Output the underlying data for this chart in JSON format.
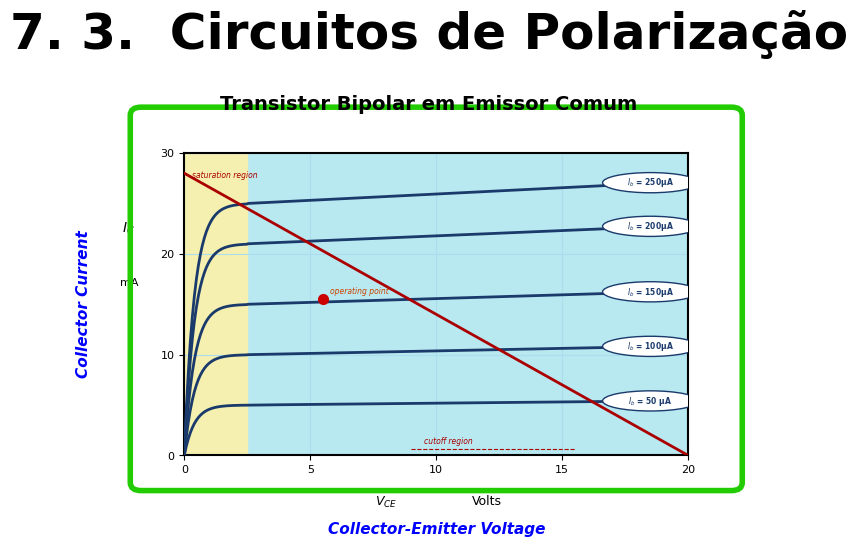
{
  "title": "7. 3.  Circuitos de Polarização",
  "subtitle": "Transistor Bipolar em Emissor Comum",
  "title_fontsize": 36,
  "subtitle_fontsize": 14,
  "background_color": "#ffffff",
  "chart": {
    "bg_color": "#b8e8f0",
    "sat_region_color": "#f5f0b0",
    "border_color": "#22cc00",
    "xlim": [
      0,
      20
    ],
    "ylim": [
      0,
      30
    ],
    "xticks": [
      0,
      5,
      10,
      15,
      20
    ],
    "yticks": [
      0,
      10,
      20,
      30
    ],
    "curves": [
      {
        "ib": 250,
        "ic_sat": 25,
        "label": "I_b = 250μA"
      },
      {
        "ib": 200,
        "ic_sat": 21,
        "label": "I_b = 200μA"
      },
      {
        "ib": 150,
        "ic_sat": 15,
        "label": "I_b = 150μA"
      },
      {
        "ib": 100,
        "ic_sat": 10,
        "label": "I_b = 100μA"
      },
      {
        "ib": 50,
        "ic_sat": 5,
        "label": "I_b = 50 μA"
      }
    ],
    "load_line": [
      [
        0,
        28
      ],
      [
        20,
        0
      ]
    ],
    "op_point": [
      5.5,
      15.5
    ],
    "curve_color": "#1a3a6b",
    "load_line_color": "#aa0000",
    "op_point_color": "#cc0000",
    "sat_text_color": "#aa0000",
    "cutoff_text_color": "#aa0000",
    "op_text_color": "#cc4400",
    "grid_color": "#aaddee"
  }
}
